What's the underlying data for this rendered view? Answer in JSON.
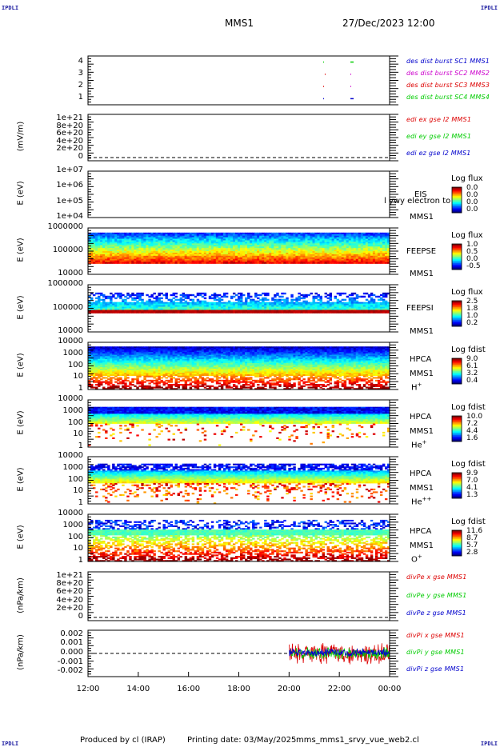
{
  "header": {
    "corner_tl": "IPDLI",
    "corner_tr": "IPDLI",
    "corner_bl": "IPDLI",
    "corner_br": "IPDLI",
    "title": "MMS1",
    "datetime": "27/Dec/2023 12:00"
  },
  "footer": {
    "produced_by": "Produced by cl (IRAP)",
    "printing_date": "Printing date: 03/May/2025",
    "script": "mms_mms1_srvy_vue_web2.cl"
  },
  "colors": {
    "mms1": "#0000cc",
    "mms2": "#cc00cc",
    "mms3": "#dd0000",
    "mms4": "#00cc00",
    "ex": "#dd0000",
    "ey": "#00cc00",
    "ez": "#0000cc"
  },
  "chart_data": [
    {
      "type": "scatter",
      "name": "des dist burst",
      "yticks": [
        "4",
        "3",
        "2",
        "1"
      ],
      "legend": [
        "des dist burst SC1 MMS1",
        "des dist burst SC2 MMS2",
        "des dist burst SC3 MMS3",
        "des dist burst SC4 MMS4"
      ],
      "ylim": [
        0.5,
        4.5
      ]
    },
    {
      "type": "line",
      "ylabel": "(mV/m)",
      "yticks": [
        "1e+21",
        "8e+20",
        "6e+20",
        "4e+20",
        "2e+20",
        "0"
      ],
      "legend": [
        "edi ex gse l2 MMS1",
        "edi ey gse l2 MMS1",
        "edi ez gse l2 MMS1"
      ]
    },
    {
      "type": "heatmap",
      "ylabel": "E (eV)",
      "yticks": [
        "1e+07",
        "1e+06",
        "1e+05",
        "1e+04"
      ],
      "instrument": [
        "EIS",
        "MMS1"
      ],
      "overlay_text": "l ywy electron to",
      "colorbar_title": "Log flux",
      "colorbar_values": [
        "0.0",
        "0.0",
        "0.0",
        "0.0"
      ]
    },
    {
      "type": "heatmap",
      "ylabel": "E (eV)",
      "yticks": [
        "1000000",
        "100000",
        "10000"
      ],
      "instrument": [
        "FEEPSE",
        "MMS1"
      ],
      "colorbar_title": "Log flux",
      "colorbar_values": [
        "1.0",
        "0.5",
        "0.0",
        "-0.5"
      ]
    },
    {
      "type": "heatmap",
      "ylabel": "E (eV)",
      "yticks": [
        "1000000",
        "100000",
        "10000"
      ],
      "instrument": [
        "FEEPSI",
        "MMS1"
      ],
      "colorbar_title": "Log flux",
      "colorbar_values": [
        "2.5",
        "1.8",
        "1.0",
        "0.2"
      ]
    },
    {
      "type": "heatmap",
      "ylabel": "E (eV)",
      "yticks": [
        "10000",
        "1000",
        "100",
        "10",
        "1"
      ],
      "instrument": [
        "HPCA",
        "MMS1",
        "H+"
      ],
      "colorbar_title": "Log fdist",
      "colorbar_values": [
        "9.0",
        "6.1",
        "3.2",
        "0.4"
      ]
    },
    {
      "type": "heatmap",
      "ylabel": "E (eV)",
      "yticks": [
        "10000",
        "1000",
        "100",
        "10",
        "1"
      ],
      "instrument": [
        "HPCA",
        "MMS1",
        "He+"
      ],
      "colorbar_title": "Log fdist",
      "colorbar_values": [
        "10.0",
        "7.2",
        "4.4",
        "1.6"
      ]
    },
    {
      "type": "heatmap",
      "ylabel": "E (eV)",
      "yticks": [
        "10000",
        "1000",
        "100",
        "10",
        "1"
      ],
      "instrument": [
        "HPCA",
        "MMS1",
        "He++"
      ],
      "colorbar_title": "Log fdist",
      "colorbar_values": [
        "9.9",
        "7.0",
        "4.1",
        "1.3"
      ]
    },
    {
      "type": "heatmap",
      "ylabel": "E (eV)",
      "yticks": [
        "10000",
        "1000",
        "100",
        "10",
        "1"
      ],
      "instrument": [
        "HPCA",
        "MMS1",
        "O+"
      ],
      "colorbar_title": "Log fdist",
      "colorbar_values": [
        "11.6",
        "8.7",
        "5.7",
        "2.8"
      ]
    },
    {
      "type": "line",
      "ylabel": "(nPa/km)",
      "yticks": [
        "1e+21",
        "8e+20",
        "6e+20",
        "4e+20",
        "2e+20",
        "0"
      ],
      "legend": [
        "divPe x gse MMS1",
        "divPe y gse MMS1",
        "divPe z gse MMS1"
      ]
    },
    {
      "type": "line",
      "ylabel": "(nPa/km)",
      "yticks": [
        "0.002",
        "0.001",
        "0.000",
        "-0.001",
        "-0.002"
      ],
      "ylim": [
        -0.0025,
        0.0025
      ],
      "legend": [
        "divPi x gse MMS1",
        "divPi y gse MMS1",
        "divPi z gse MMS1"
      ],
      "data_start_time": "20:00"
    }
  ],
  "xaxis": {
    "ticks": [
      "12:00",
      "14:00",
      "16:00",
      "18:00",
      "20:00",
      "22:00",
      "00:00"
    ]
  }
}
